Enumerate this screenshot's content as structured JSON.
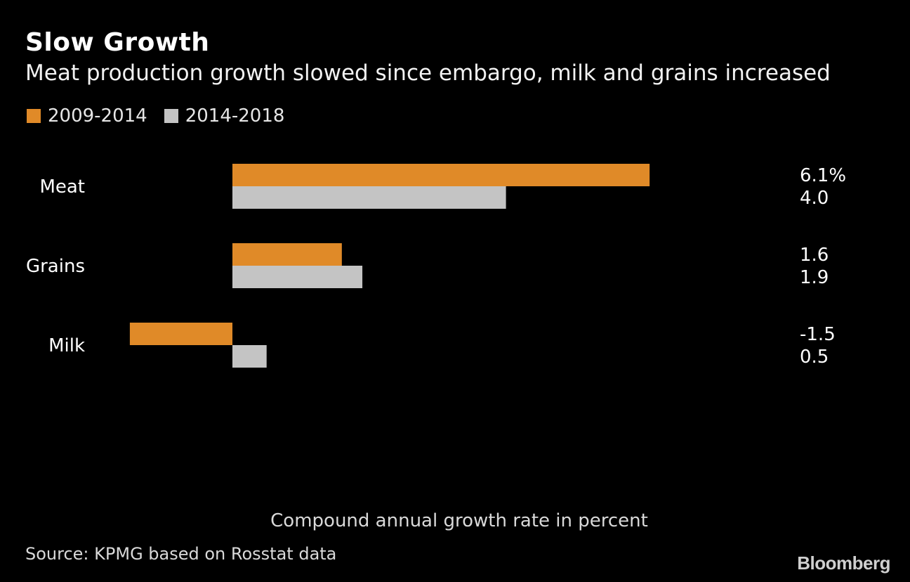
{
  "title": "Slow Growth",
  "subtitle": "Meat production growth slowed since embargo, milk and grains increased",
  "legend": [
    {
      "label": "2009-2014",
      "color": "#E08A28"
    },
    {
      "label": "2014-2018",
      "color": "#C4C4C4"
    }
  ],
  "caption": "Compound annual growth rate in percent",
  "source": "Source: KPMG based on Rosstat data",
  "logo": "Bloomberg",
  "chart_data": {
    "type": "bar",
    "orientation": "horizontal",
    "categories": [
      "Meat",
      "Grains",
      "Milk"
    ],
    "series": [
      {
        "name": "2009-2014",
        "color": "#E08A28",
        "values": [
          6.1,
          1.6,
          -1.5
        ],
        "labels": [
          "6.1%",
          "1.6",
          "-1.5"
        ]
      },
      {
        "name": "2014-2018",
        "color": "#C4C4C4",
        "values": [
          4.0,
          1.9,
          0.5
        ],
        "labels": [
          "4.0",
          "1.9",
          "0.5"
        ]
      }
    ],
    "xlim": [
      -1.5,
      6.1
    ],
    "grid": false,
    "legend_position": "top-left",
    "xlabel": "Compound annual growth rate in percent"
  }
}
